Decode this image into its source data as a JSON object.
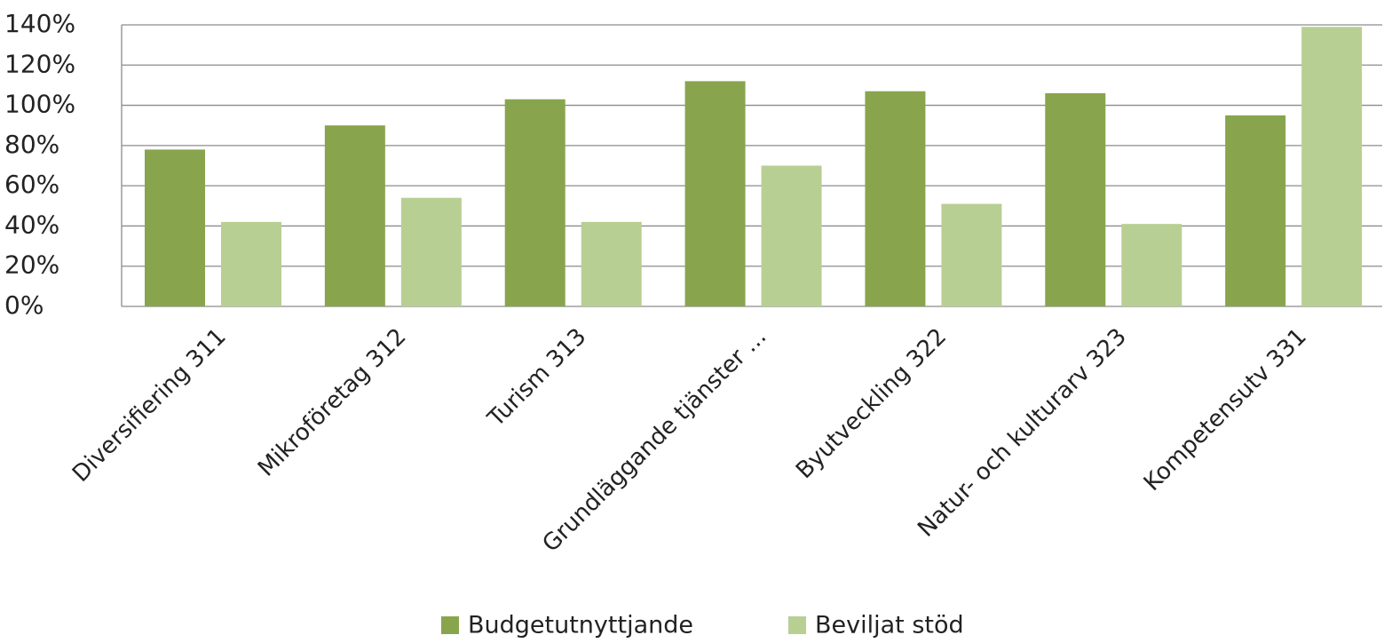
{
  "chart_data": {
    "type": "bar",
    "categories": [
      "Diversifiering 311",
      "Mikroföretag 312",
      "Turism 313",
      "Grundläggande tjänster ...",
      "Byutveckling 322",
      "Natur- och kulturarv 323",
      "Kompetensutv 331"
    ],
    "series": [
      {
        "name": "Budgetutnyttjande",
        "color": "#88a54e",
        "values": [
          78,
          90,
          103,
          112,
          107,
          106,
          95
        ]
      },
      {
        "name": "Beviljat stöd",
        "color": "#b8cf93",
        "values": [
          42,
          54,
          42,
          70,
          51,
          41,
          139
        ]
      }
    ],
    "ylim": [
      0,
      140
    ],
    "yticks": [
      {
        "value": 0,
        "label": "0%"
      },
      {
        "value": 20,
        "label": "20%"
      },
      {
        "value": 40,
        "label": "40%"
      },
      {
        "value": 60,
        "label": "60%"
      },
      {
        "value": 80,
        "label": "80%"
      },
      {
        "value": 100,
        "label": "100%"
      },
      {
        "value": 120,
        "label": "120%"
      },
      {
        "value": 140,
        "label": "140%"
      }
    ],
    "grid": true,
    "legend": "bottom"
  }
}
